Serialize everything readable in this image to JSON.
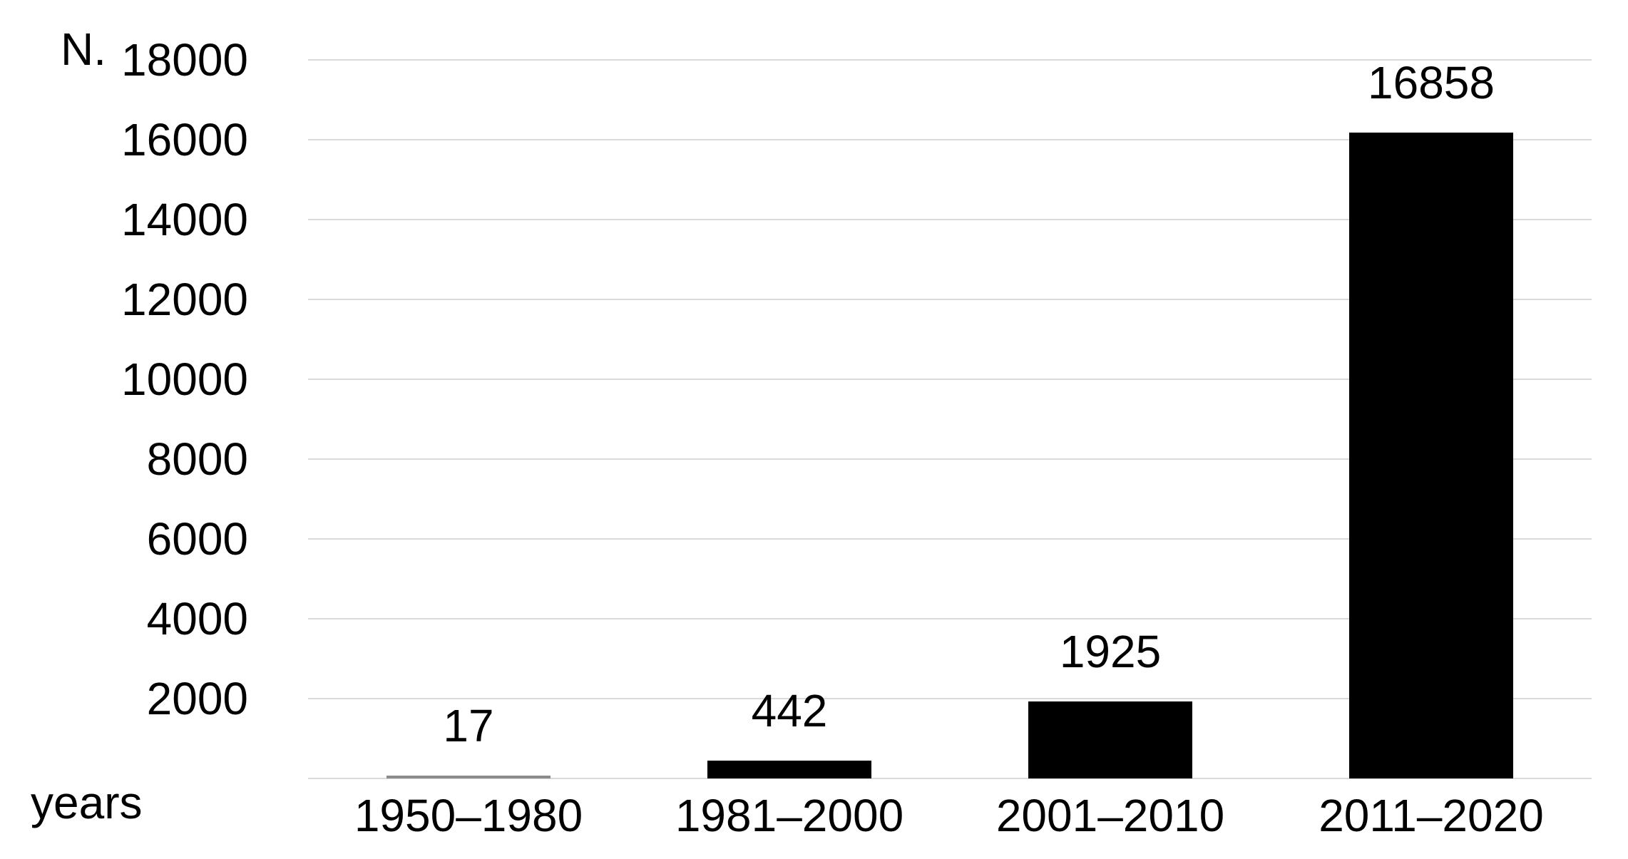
{
  "chart_data": {
    "type": "bar",
    "title": "",
    "categories": [
      "1950–1980",
      "1981–2000",
      "2001–2010",
      "2011–2020"
    ],
    "values": [
      17,
      442,
      1925,
      16858
    ],
    "data_labels": [
      "17",
      "442",
      "1925",
      "16858"
    ],
    "xlabel": "years",
    "ylabel": "N.",
    "ylim": [
      0,
      18000
    ],
    "ytick_step": 2000,
    "yticks": [
      18000,
      16000,
      14000,
      12000,
      10000,
      8000,
      6000,
      4000,
      2000
    ],
    "grid": true,
    "legend": "none",
    "bar_color": "#000000",
    "tiny_bar_color": "#8c8c8c",
    "gridline_color": "#d9d9d9",
    "text_color": "#000000"
  }
}
